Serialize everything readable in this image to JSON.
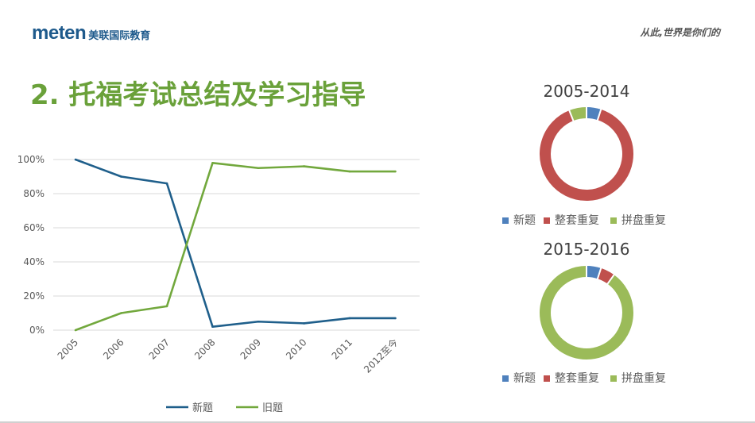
{
  "header": {
    "logo_mark": "meten",
    "logo_cn": "美联国际教育",
    "slogan": "从此,世界是你们的"
  },
  "title": "2. 托福考试总结及学习指导",
  "colors": {
    "blue": "#1f5f8b",
    "green": "#72a83d",
    "pie_blue": "#4f81bd",
    "pie_red": "#c0504d",
    "pie_green": "#9bbb59"
  },
  "chart_data": [
    {
      "type": "line",
      "categories": [
        "2005",
        "2006",
        "2007",
        "2008",
        "2009",
        "2010",
        "2011",
        "2012至今"
      ],
      "series": [
        {
          "name": "新题",
          "values": [
            100,
            90,
            86,
            2,
            5,
            4,
            7,
            7
          ]
        },
        {
          "name": "旧题",
          "values": [
            0,
            10,
            14,
            98,
            95,
            96,
            93,
            93
          ]
        }
      ],
      "y_ticks": [
        "0%",
        "20%",
        "40%",
        "60%",
        "80%",
        "100%"
      ],
      "ylim": [
        0,
        100
      ],
      "grid": true,
      "legend_position": "bottom"
    },
    {
      "type": "pie",
      "title": "2005-2014",
      "labels": [
        "新题",
        "整套重复",
        "拼盘重复"
      ],
      "values": [
        5,
        89,
        6
      ]
    },
    {
      "type": "pie",
      "title": "2015-2016",
      "labels": [
        "新题",
        "整套重复",
        "拼盘重复"
      ],
      "values": [
        5,
        5,
        90
      ]
    }
  ]
}
